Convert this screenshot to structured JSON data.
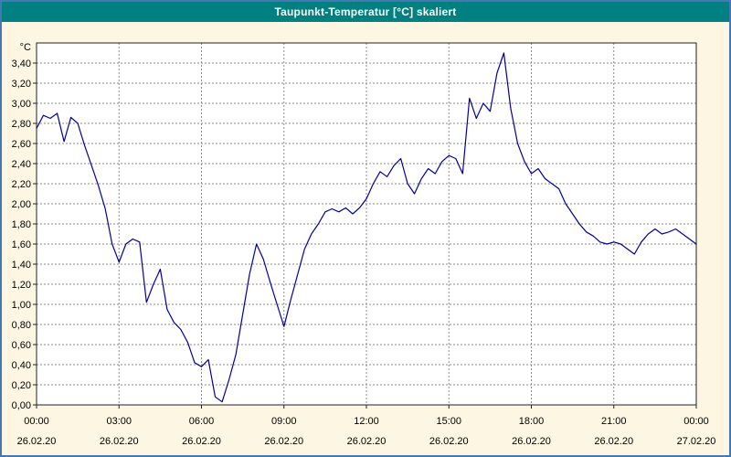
{
  "window": {
    "title": "Taupunkt-Temperatur [°C] skaliert"
  },
  "colors": {
    "titlebar-bg": "#008080",
    "page-bg": "#fdf6e3",
    "outer-border": "#4577b0",
    "plot-border": "#222222",
    "grid-color": "#8a8a8a",
    "line-color": "#0000a0",
    "text-color": "#000000"
  },
  "chart_data": {
    "type": "line",
    "title": "Taupunkt-Temperatur [°C] skaliert",
    "xlabel": "",
    "ylabel": "°C",
    "ylim": [
      0,
      3.6
    ],
    "xlim_hours": [
      0,
      24
    ],
    "grid": true,
    "legend": "none",
    "line_color": "#0000a0",
    "y_ticks": [
      {
        "v": 0.0,
        "label": "0,00"
      },
      {
        "v": 0.2,
        "label": "0,20"
      },
      {
        "v": 0.4,
        "label": "0,40"
      },
      {
        "v": 0.6,
        "label": "0,60"
      },
      {
        "v": 0.8,
        "label": "0,80"
      },
      {
        "v": 1.0,
        "label": "1,00"
      },
      {
        "v": 1.2,
        "label": "1,20"
      },
      {
        "v": 1.4,
        "label": "1,40"
      },
      {
        "v": 1.6,
        "label": "1,60"
      },
      {
        "v": 1.8,
        "label": "1,80"
      },
      {
        "v": 2.0,
        "label": "2,00"
      },
      {
        "v": 2.2,
        "label": "2,20"
      },
      {
        "v": 2.4,
        "label": "2,40"
      },
      {
        "v": 2.6,
        "label": "2,60"
      },
      {
        "v": 2.8,
        "label": "2,80"
      },
      {
        "v": 3.0,
        "label": "3,00"
      },
      {
        "v": 3.2,
        "label": "3,20"
      },
      {
        "v": 3.4,
        "label": "3,40"
      }
    ],
    "x_ticks": [
      {
        "h": 0,
        "time": "00:00",
        "date": "26.02.20"
      },
      {
        "h": 3,
        "time": "03:00",
        "date": "26.02.20"
      },
      {
        "h": 6,
        "time": "06:00",
        "date": "26.02.20"
      },
      {
        "h": 9,
        "time": "09:00",
        "date": "26.02.20"
      },
      {
        "h": 12,
        "time": "12:00",
        "date": "26.02.20"
      },
      {
        "h": 15,
        "time": "15:00",
        "date": "26.02.20"
      },
      {
        "h": 18,
        "time": "18:00",
        "date": "26.02.20"
      },
      {
        "h": 21,
        "time": "21:00",
        "date": "26.02.20"
      },
      {
        "h": 24,
        "time": "00:00",
        "date": "27.02.20"
      }
    ],
    "series": [
      {
        "name": "Taupunkt-Temperatur",
        "x": [
          0,
          0.25,
          0.5,
          0.75,
          1,
          1.25,
          1.5,
          1.75,
          2,
          2.25,
          2.5,
          2.75,
          3,
          3.25,
          3.5,
          3.75,
          4,
          4.25,
          4.5,
          4.75,
          5,
          5.25,
          5.5,
          5.75,
          6,
          6.25,
          6.5,
          6.75,
          7,
          7.25,
          7.5,
          7.75,
          8,
          8.25,
          8.5,
          8.75,
          9,
          9.25,
          9.5,
          9.75,
          10,
          10.25,
          10.5,
          10.75,
          11,
          11.25,
          11.5,
          11.75,
          12,
          12.25,
          12.5,
          12.75,
          13,
          13.25,
          13.5,
          13.75,
          14,
          14.25,
          14.5,
          14.75,
          15,
          15.25,
          15.5,
          15.75,
          16,
          16.25,
          16.5,
          16.75,
          17,
          17.25,
          17.5,
          17.75,
          18,
          18.25,
          18.5,
          18.75,
          19,
          19.25,
          19.5,
          19.75,
          20,
          20.25,
          20.5,
          20.75,
          21,
          21.25,
          21.5,
          21.75,
          22,
          22.25,
          22.5,
          22.75,
          23,
          23.25,
          23.5,
          23.75,
          24
        ],
        "values": [
          2.75,
          2.88,
          2.85,
          2.9,
          2.62,
          2.86,
          2.8,
          2.58,
          2.38,
          2.18,
          1.95,
          1.6,
          1.42,
          1.6,
          1.65,
          1.62,
          1.02,
          1.2,
          1.35,
          0.95,
          0.82,
          0.75,
          0.62,
          0.42,
          0.38,
          0.45,
          0.08,
          0.03,
          0.25,
          0.5,
          0.9,
          1.3,
          1.6,
          1.45,
          1.22,
          1.0,
          0.78,
          1.05,
          1.3,
          1.55,
          1.7,
          1.8,
          1.92,
          1.95,
          1.92,
          1.96,
          1.9,
          1.96,
          2.05,
          2.2,
          2.32,
          2.27,
          2.38,
          2.45,
          2.2,
          2.1,
          2.25,
          2.35,
          2.3,
          2.42,
          2.48,
          2.45,
          2.3,
          3.05,
          2.85,
          3.0,
          2.92,
          3.3,
          3.5,
          2.95,
          2.6,
          2.42,
          2.3,
          2.35,
          2.25,
          2.2,
          2.15,
          2.0,
          1.9,
          1.8,
          1.72,
          1.68,
          1.62,
          1.6,
          1.62,
          1.6,
          1.55,
          1.5,
          1.62,
          1.7,
          1.75,
          1.7,
          1.72,
          1.75,
          1.7,
          1.65,
          1.6
        ]
      }
    ]
  }
}
